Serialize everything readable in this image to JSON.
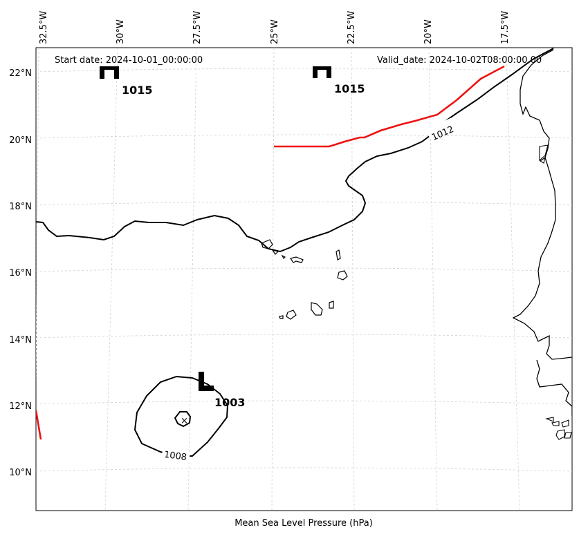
{
  "header": {
    "start_date": "Start date: 2024-10-01_00:00:00",
    "valid_date": "Valid_date: 2024-10-02T08:00:00.00"
  },
  "footer": {
    "variable_label": "Mean Sea Level Pressure (hPa)"
  },
  "axes": {
    "longitude_labels": [
      "32.5°W",
      "30°W",
      "27.5°W",
      "25°W",
      "22.5°W",
      "20°W",
      "17.5°W"
    ],
    "latitude_labels": [
      "22°N",
      "20°N",
      "18°N",
      "16°N",
      "14°N",
      "12°N",
      "10°N"
    ]
  },
  "pressure_centers": [
    {
      "symbol": "H",
      "value": "1015",
      "lon": -29.9,
      "lat": 22.0
    },
    {
      "symbol": "H",
      "value": "1015",
      "lon": -23.4,
      "lat": 22.0
    },
    {
      "symbol": "L",
      "value": "1003",
      "lon": -27.3,
      "lat": 12.7
    }
  ],
  "contour_labels": [
    {
      "text": "1012",
      "lon": -19.8,
      "lat": 20.3
    },
    {
      "text": "1008",
      "lon": -27.6,
      "lat": 10.4
    }
  ],
  "colors": {
    "coast": "#000000",
    "isobar": "#000000",
    "front": "#ee1111",
    "grid": "#cccccc"
  }
}
